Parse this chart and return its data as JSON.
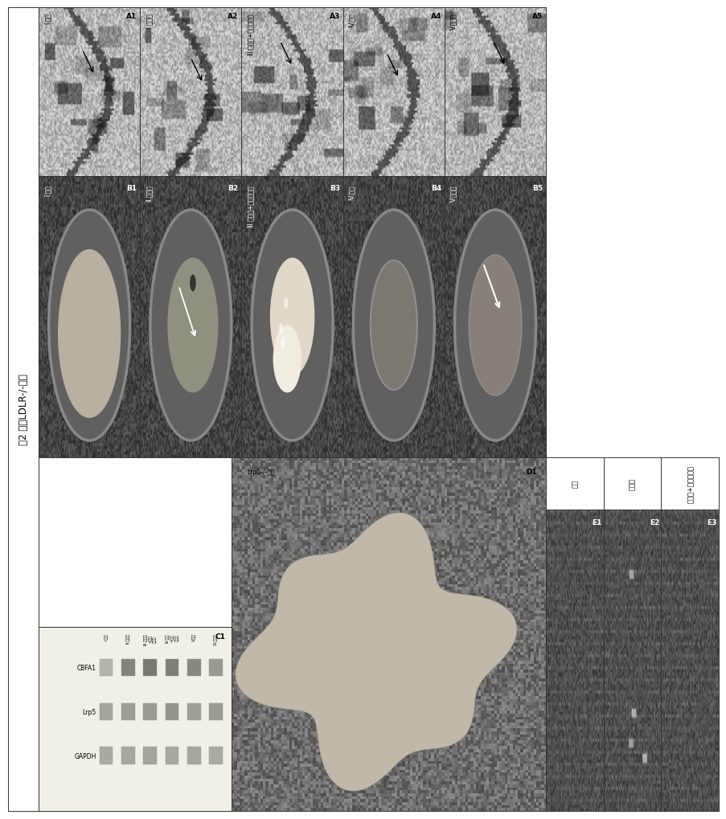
{
  "title": "图2 小鼠LDLR-/-心脏",
  "row_A_labels": [
    "I.对照",
    "II.胆固醇",
    "III.胆固醇+阿托伐他汀",
    "IV.消退",
    "V.氯化锂"
  ],
  "row_B_labels": [
    "I.对照",
    "II.胆固醇",
    "III.胆固醇+阿托伐他汀",
    "IV.消退",
    "V.氯化锂"
  ],
  "panel_labels_A": [
    "A1",
    "A2",
    "A3",
    "A4",
    "A5"
  ],
  "panel_labels_B": [
    "B1",
    "B2",
    "B3",
    "B4",
    "B5"
  ],
  "panel_label_C": "C1",
  "panel_label_D": "D1",
  "panel_labels_E": [
    "E1",
    "E2",
    "E3"
  ],
  "col_E_labels": [
    "对照",
    "胆固醇",
    "胆固醇+阿托伐他汀"
  ],
  "western_labels": [
    "CBFA1",
    "Lrp5",
    "GAPDH"
  ],
  "western_lane_labels": [
    "I.对照",
    "II.胆固醇",
    "III.胆固醇+阿托伐他汀",
    "IV.消退+阿托伐他汀",
    "V.消退",
    "VI.氯化锂"
  ],
  "D1_label": "Lrp5-/-小鼠",
  "bg_color": "#ffffff",
  "title_fontsize": 9,
  "label_fontsize": 6
}
